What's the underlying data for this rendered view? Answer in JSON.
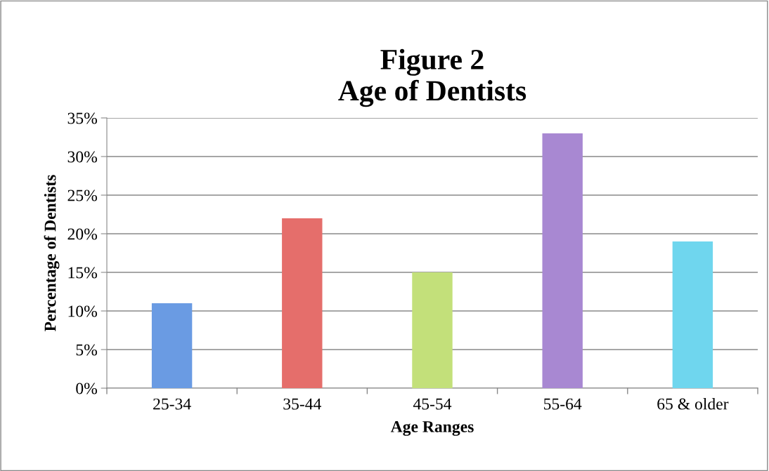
{
  "chart_data": {
    "type": "bar",
    "title": "Figure 2\nAge of Dentists",
    "xlabel": "Age Ranges",
    "ylabel": "Percentage of Dentists",
    "categories": [
      "25-34",
      "35-44",
      "45-54",
      "55-64",
      "65 & older"
    ],
    "values": [
      11,
      22,
      15,
      33,
      19
    ],
    "colors": [
      "#6a9be3",
      "#e56e6b",
      "#c3e07a",
      "#a888d2",
      "#6fd6ee"
    ],
    "ylim": [
      0,
      35
    ],
    "yticks": [
      {
        "value": 0,
        "label": "0%"
      },
      {
        "value": 5,
        "label": "5%"
      },
      {
        "value": 10,
        "label": "10%"
      },
      {
        "value": 15,
        "label": "15%"
      },
      {
        "value": 20,
        "label": "20%"
      },
      {
        "value": 25,
        "label": "25%"
      },
      {
        "value": 30,
        "label": "30%"
      },
      {
        "value": 35,
        "label": "35%"
      }
    ],
    "grid": "y",
    "legend": false
  }
}
